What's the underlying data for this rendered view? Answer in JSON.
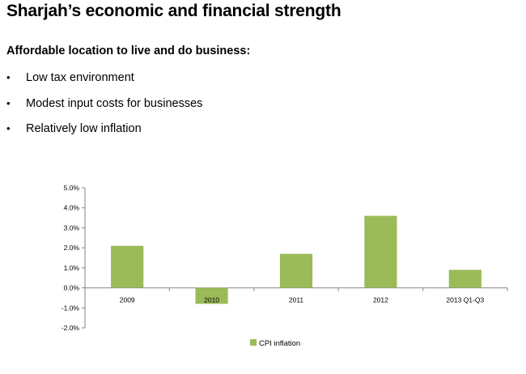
{
  "slide": {
    "title": "Sharjah’s economic and financial strength",
    "subheading": "Affordable location to live and do business:",
    "bullets": [
      "Low tax environment",
      "Modest input costs for businesses",
      "Relatively low inflation"
    ],
    "bullet_symbol": "•"
  },
  "chart_data": {
    "type": "bar",
    "categories": [
      "2009",
      "2010",
      "2011",
      "2012",
      "2013 Q1-Q3"
    ],
    "series": [
      {
        "name": "CPI inflation",
        "values": [
          2.1,
          -0.8,
          1.7,
          3.6,
          0.9
        ],
        "color": "#9bbb59"
      }
    ],
    "ylim": [
      -2.0,
      5.0
    ],
    "yticks": [
      -2.0,
      -1.0,
      0.0,
      1.0,
      2.0,
      3.0,
      4.0,
      5.0
    ],
    "ytick_labels": [
      "-2.0%",
      "-1.0%",
      "0.0%",
      "1.0%",
      "2.0%",
      "3.0%",
      "4.0%",
      "5.0%"
    ],
    "title": "",
    "xlabel": "",
    "ylabel": "",
    "grid": false,
    "legend_position": "bottom-center"
  }
}
